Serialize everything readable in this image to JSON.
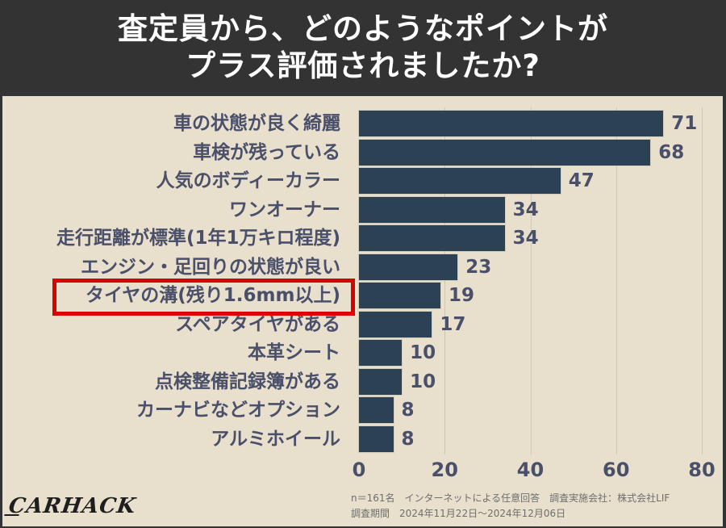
{
  "header": {
    "title_line1": "査定員から、どのようなポイントが",
    "title_line2": "プラス評価されましたか?"
  },
  "chart_data": {
    "type": "bar",
    "orientation": "horizontal",
    "title": "査定員から、どのようなポイントがプラス評価されましたか?",
    "xlabel": "",
    "ylabel": "",
    "xlim": [
      0,
      80
    ],
    "x_ticks": [
      0,
      20,
      40,
      60,
      80
    ],
    "grid": true,
    "categories": [
      "車の状態が良く綺麗",
      "車検が残っている",
      "人気のボディーカラー",
      "ワンオーナー",
      "走行距離が標準(1年1万キロ程度)",
      "エンジン・足回りの状態が良い",
      "タイヤの溝(残り1.6mm以上)",
      "スペアタイヤがある",
      "本革シート",
      "点検整備記録簿がある",
      "カーナビなどオプション",
      "アルミホイール"
    ],
    "values": [
      71,
      68,
      47,
      34,
      34,
      23,
      19,
      17,
      10,
      10,
      8,
      8
    ],
    "highlighted_category": "タイヤの溝(残り1.6mm以上)",
    "bar_color": "#2d4154",
    "highlight_color": "#d90000"
  },
  "axis": {
    "ticks": [
      "0",
      "20",
      "40",
      "60",
      "80"
    ]
  },
  "footer": {
    "logo": "CARHACK",
    "note_line1": "n＝161名　インターネットによる任意回答　調査実施会社：株式会社LIF",
    "note_line2": "調査期間　2024年11月22日～2024年12月06日"
  }
}
